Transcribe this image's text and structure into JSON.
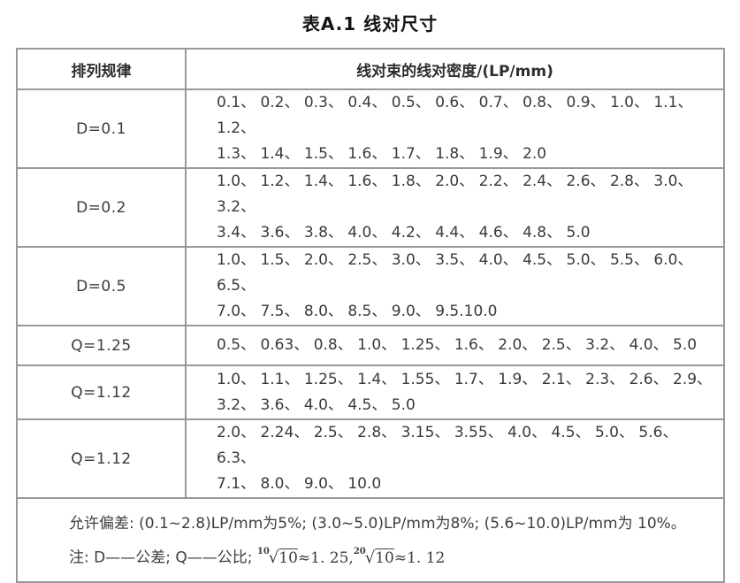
{
  "title": "表A.1 线对尺寸",
  "table": {
    "headers": {
      "rule": "排列规律",
      "density": "线对束的线对密度/(LP/mm)"
    },
    "rows": [
      {
        "rule": "D=0.1",
        "values": [
          "0.1、 0.2、 0.3、 0.4、 0.5、 0.6、 0.7、 0.8、 0.9、 1.0、 1.1、 1.2、",
          "1.3、 1.4、 1.5、 1.6、 1.7、 1.8、 1.9、 2.0"
        ]
      },
      {
        "rule": "D=0.2",
        "values": [
          "1.0、 1.2、 1.4、 1.6、 1.8、 2.0、 2.2、 2.4、 2.6、 2.8、 3.0、 3.2、",
          "3.4、 3.6、 3.8、 4.0、 4.2、 4.4、 4.6、 4.8、 5.0"
        ]
      },
      {
        "rule": "D=0.5",
        "values": [
          "1.0、 1.5、 2.0、 2.5、 3.0、 3.5、 4.0、 4.5、 5.0、 5.5、 6.0、 6.5、",
          "7.0、 7.5、 8.0、 8.5、 9.0、 9.5.10.0"
        ]
      },
      {
        "rule": "Q=1.25",
        "values": [
          "0.5、 0.63、 0.8、 1.0、 1.25、 1.6、 2.0、 2.5、 3.2、 4.0、 5.0"
        ]
      },
      {
        "rule": "Q=1.12",
        "values": [
          "1.0、 1.1、 1.25、 1.4、 1.55、 1.7、 1.9、 2.1、 2.3、 2.6、 2.9、",
          "3.2、 3.6、 4.0、 4.5、 5.0"
        ]
      },
      {
        "rule": "Q=1.12",
        "values": [
          "2.0、 2.24、 2.5、 2.8、 3.15、 3.55、 4.0、 4.5、 5.0、 5.6、 6.3、",
          "7.1、 8.0、 9.0、 10.0"
        ]
      }
    ],
    "footer": {
      "tolerance": "允许偏差: (0.1~2.8)LP/mm为5%; (3.0~5.0)LP/mm为8%; (5.6~10.0)LP/mm为 10%。",
      "note_prefix": "注: D——公差; Q——公比; ",
      "roots": [
        {
          "index": "10",
          "radical": "√",
          "radicand": "10",
          "approx": "≈1. 25,"
        },
        {
          "index": "20",
          "radical": "√",
          "radicand": "10",
          "approx": "≈1. 12"
        }
      ]
    }
  },
  "colors": {
    "border": "#989898",
    "text": "#3a3a3a",
    "title": "#141414",
    "background": "#ffffff"
  }
}
